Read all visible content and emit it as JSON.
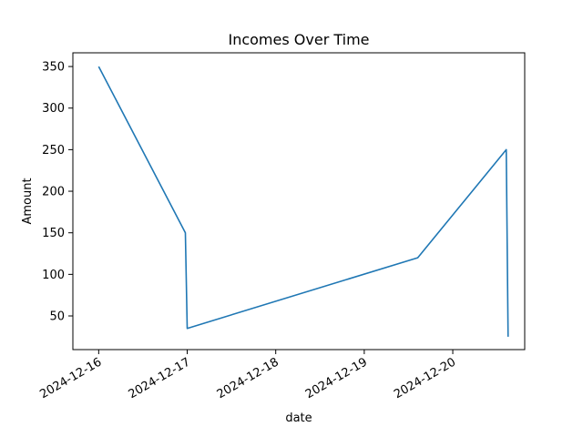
{
  "chart_data": {
    "type": "line",
    "title": "Incomes Over Time",
    "xlabel": "date",
    "ylabel": "Amount",
    "x_ticks": [
      "2024-12-16",
      "2024-12-17",
      "2024-12-18",
      "2024-12-19",
      "2024-12-20"
    ],
    "y_ticks": [
      50,
      100,
      150,
      200,
      250,
      300,
      350
    ],
    "xlim": [
      "2024-12-15T17:00",
      "2024-12-20T19:30"
    ],
    "ylim": [
      9.5,
      366.5
    ],
    "grid": false,
    "line_color": "#1f77b4",
    "series": [
      {
        "points": [
          {
            "x": "2024-12-16T00:00",
            "y": 350
          },
          {
            "x": "2024-12-16T23:30",
            "y": 150
          },
          {
            "x": "2024-12-17T00:00",
            "y": 35
          },
          {
            "x": "2024-12-19T14:30",
            "y": 120
          },
          {
            "x": "2024-12-20T14:30",
            "y": 250
          },
          {
            "x": "2024-12-20T15:00",
            "y": 25
          }
        ]
      }
    ]
  }
}
